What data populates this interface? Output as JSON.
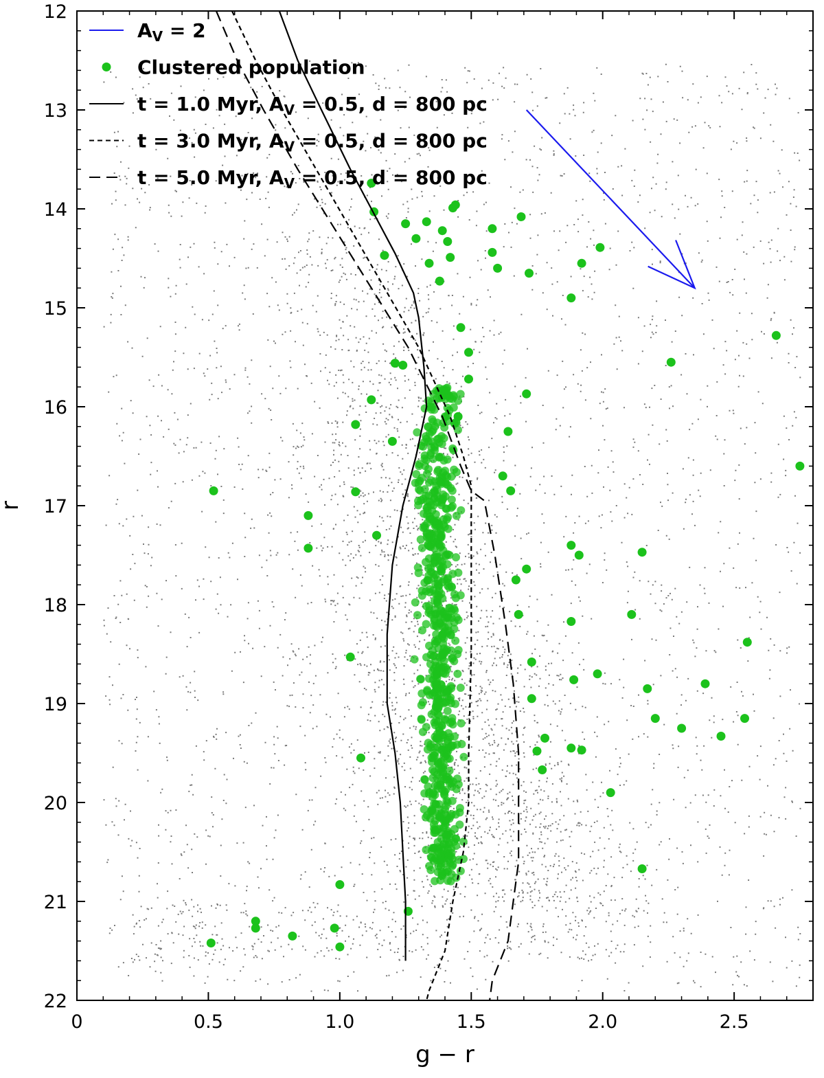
{
  "chart_data": {
    "type": "scatter",
    "title": "",
    "xlabel": "g − r",
    "ylabel": "r",
    "xlim": [
      0,
      2.8
    ],
    "ylim": [
      22,
      12
    ],
    "y_inverted": true,
    "x_ticks": [
      0,
      0.5,
      1.0,
      1.5,
      2.0,
      2.5
    ],
    "x_tick_labels": [
      "0",
      "0.5",
      "1.0",
      "1.5",
      "2.0",
      "2.5"
    ],
    "y_ticks": [
      12,
      13,
      14,
      15,
      16,
      17,
      18,
      19,
      20,
      21,
      22
    ],
    "y_tick_labels": [
      "12",
      "13",
      "14",
      "15",
      "16",
      "17",
      "18",
      "19",
      "20",
      "21",
      "22"
    ],
    "grid": false,
    "legend_position": "top-left",
    "colors": {
      "field": "#7a7a7a",
      "cluster": "#1cc21c",
      "isochrone": "#000000",
      "arrow": "#1a1aee"
    },
    "legend": [
      {
        "label": "A",
        "sub": "V",
        "rest": " = 2",
        "style": "blue-line"
      },
      {
        "label": "Clustered population",
        "style": "green-dot"
      },
      {
        "label": "t = 1.0 Myr, A",
        "sub": "V",
        "rest": " = 0.5, d = 800 pc",
        "style": "solid"
      },
      {
        "label": "t = 3.0 Myr, A",
        "sub": "V",
        "rest": " = 0.5, d = 800 pc",
        "style": "dotted"
      },
      {
        "label": "t = 5.0 Myr, A",
        "sub": "V",
        "rest": " = 0.5, d = 800 pc",
        "style": "dashed"
      }
    ],
    "reddening_vector": {
      "name": "AV = 2",
      "from": [
        1.71,
        13.0
      ],
      "to": [
        2.35,
        14.8
      ]
    },
    "series": [
      {
        "name": "t = 1.0 Myr, AV = 0.5, d = 800 pc",
        "style": "solid",
        "points": [
          [
            0.77,
            12.0
          ],
          [
            0.84,
            12.5
          ],
          [
            0.93,
            13.0
          ],
          [
            1.04,
            13.6
          ],
          [
            1.14,
            14.1
          ],
          [
            1.21,
            14.45
          ],
          [
            1.28,
            14.85
          ],
          [
            1.3,
            15.1
          ],
          [
            1.32,
            15.6
          ],
          [
            1.33,
            16.0
          ],
          [
            1.29,
            16.5
          ],
          [
            1.24,
            17.0
          ],
          [
            1.2,
            17.6
          ],
          [
            1.18,
            18.3
          ],
          [
            1.18,
            19.0
          ],
          [
            1.21,
            19.5
          ],
          [
            1.23,
            20.0
          ],
          [
            1.24,
            20.5
          ],
          [
            1.25,
            21.0
          ],
          [
            1.25,
            21.6
          ]
        ]
      },
      {
        "name": "t = 3.0 Myr, AV = 0.5, d = 800 pc",
        "style": "dotted",
        "points": [
          [
            0.59,
            12.0
          ],
          [
            0.68,
            12.5
          ],
          [
            0.78,
            13.0
          ],
          [
            0.91,
            13.6
          ],
          [
            1.04,
            14.2
          ],
          [
            1.17,
            14.8
          ],
          [
            1.3,
            15.4
          ],
          [
            1.42,
            16.1
          ],
          [
            1.47,
            16.5
          ],
          [
            1.5,
            16.8
          ],
          [
            1.5,
            17.5
          ],
          [
            1.5,
            18.5
          ],
          [
            1.49,
            19.5
          ],
          [
            1.49,
            20.0
          ],
          [
            1.47,
            20.5
          ],
          [
            1.43,
            21.0
          ],
          [
            1.4,
            21.5
          ],
          [
            1.34,
            21.9
          ],
          [
            1.33,
            22.0
          ]
        ]
      },
      {
        "name": "t = 5.0 Myr, AV = 0.5, d = 800 pc",
        "style": "dashed",
        "points": [
          [
            0.53,
            12.0
          ],
          [
            0.61,
            12.5
          ],
          [
            0.71,
            13.0
          ],
          [
            0.84,
            13.6
          ],
          [
            0.98,
            14.2
          ],
          [
            1.12,
            14.8
          ],
          [
            1.26,
            15.4
          ],
          [
            1.39,
            16.1
          ],
          [
            1.46,
            16.6
          ],
          [
            1.5,
            16.85
          ],
          [
            1.55,
            16.95
          ],
          [
            1.59,
            17.5
          ],
          [
            1.63,
            18.2
          ],
          [
            1.66,
            18.8
          ],
          [
            1.68,
            19.5
          ],
          [
            1.68,
            20.0
          ],
          [
            1.68,
            20.6
          ],
          [
            1.66,
            21.0
          ],
          [
            1.64,
            21.4
          ],
          [
            1.58,
            21.8
          ],
          [
            1.57,
            22.0
          ]
        ]
      },
      {
        "name": "Clustered population",
        "style": "green-dots",
        "points": [
          [
            0.51,
            21.42
          ],
          [
            0.52,
            16.85
          ],
          [
            0.68,
            21.2
          ],
          [
            0.68,
            21.27
          ],
          [
            0.82,
            21.35
          ],
          [
            0.88,
            17.1
          ],
          [
            0.88,
            17.43
          ],
          [
            0.98,
            21.27
          ],
          [
            1.0,
            20.83
          ],
          [
            1.0,
            21.46
          ],
          [
            1.04,
            18.53
          ],
          [
            1.06,
            16.18
          ],
          [
            1.06,
            16.86
          ],
          [
            1.08,
            19.55
          ],
          [
            1.12,
            13.74
          ],
          [
            1.12,
            15.93
          ],
          [
            1.13,
            14.03
          ],
          [
            1.14,
            17.3
          ],
          [
            1.17,
            14.47
          ],
          [
            1.2,
            16.35
          ],
          [
            1.21,
            15.56
          ],
          [
            1.24,
            15.58
          ],
          [
            1.25,
            14.15
          ],
          [
            1.26,
            21.1
          ],
          [
            1.29,
            14.3
          ],
          [
            1.33,
            14.13
          ],
          [
            1.34,
            14.55
          ],
          [
            1.38,
            14.73
          ],
          [
            1.39,
            14.22
          ],
          [
            1.41,
            14.33
          ],
          [
            1.42,
            14.49
          ],
          [
            1.43,
            13.99
          ],
          [
            1.44,
            13.96
          ],
          [
            1.45,
            16.1
          ],
          [
            1.46,
            15.2
          ],
          [
            1.49,
            15.45
          ],
          [
            1.49,
            15.72
          ],
          [
            1.58,
            14.2
          ],
          [
            1.58,
            14.44
          ],
          [
            1.6,
            14.6
          ],
          [
            1.62,
            16.7
          ],
          [
            1.64,
            16.25
          ],
          [
            1.65,
            16.85
          ],
          [
            1.67,
            17.75
          ],
          [
            1.68,
            18.1
          ],
          [
            1.69,
            14.08
          ],
          [
            1.71,
            15.87
          ],
          [
            1.71,
            17.64
          ],
          [
            1.72,
            14.65
          ],
          [
            1.73,
            18.58
          ],
          [
            1.73,
            18.95
          ],
          [
            1.75,
            19.48
          ],
          [
            1.77,
            19.67
          ],
          [
            1.78,
            19.35
          ],
          [
            1.88,
            14.9
          ],
          [
            1.88,
            17.4
          ],
          [
            1.88,
            18.17
          ],
          [
            1.88,
            19.45
          ],
          [
            1.89,
            18.76
          ],
          [
            1.91,
            17.5
          ],
          [
            1.92,
            14.55
          ],
          [
            1.92,
            19.47
          ],
          [
            1.98,
            18.7
          ],
          [
            1.99,
            14.39
          ],
          [
            2.03,
            19.9
          ],
          [
            2.11,
            18.1
          ],
          [
            2.15,
            17.47
          ],
          [
            2.15,
            20.67
          ],
          [
            2.17,
            18.85
          ],
          [
            2.2,
            19.15
          ],
          [
            2.26,
            15.55
          ],
          [
            2.3,
            19.25
          ],
          [
            2.39,
            18.8
          ],
          [
            2.45,
            19.33
          ],
          [
            2.54,
            19.15
          ],
          [
            2.55,
            18.38
          ],
          [
            2.66,
            15.28
          ],
          [
            2.75,
            16.6
          ]
        ]
      }
    ],
    "density_regions": [
      {
        "name": "field star distribution (grey 2D histogram)",
        "ridge": [
          [
            0.66,
            14.0
          ],
          [
            0.74,
            15.0
          ],
          [
            0.86,
            16.5
          ],
          [
            0.98,
            18.0
          ],
          [
            1.15,
            19.5
          ],
          [
            1.3,
            21.0
          ]
        ],
        "note": "dense grey locus spanning g−r 0.3–2.4, r 13.5–21.6"
      },
      {
        "name": "cluster sequence (dense green)",
        "ridge": [
          [
            1.36,
            16.2
          ],
          [
            1.37,
            17.0
          ],
          [
            1.38,
            18.0
          ],
          [
            1.38,
            19.0
          ],
          [
            1.39,
            20.0
          ],
          [
            1.4,
            20.6
          ]
        ]
      }
    ]
  }
}
